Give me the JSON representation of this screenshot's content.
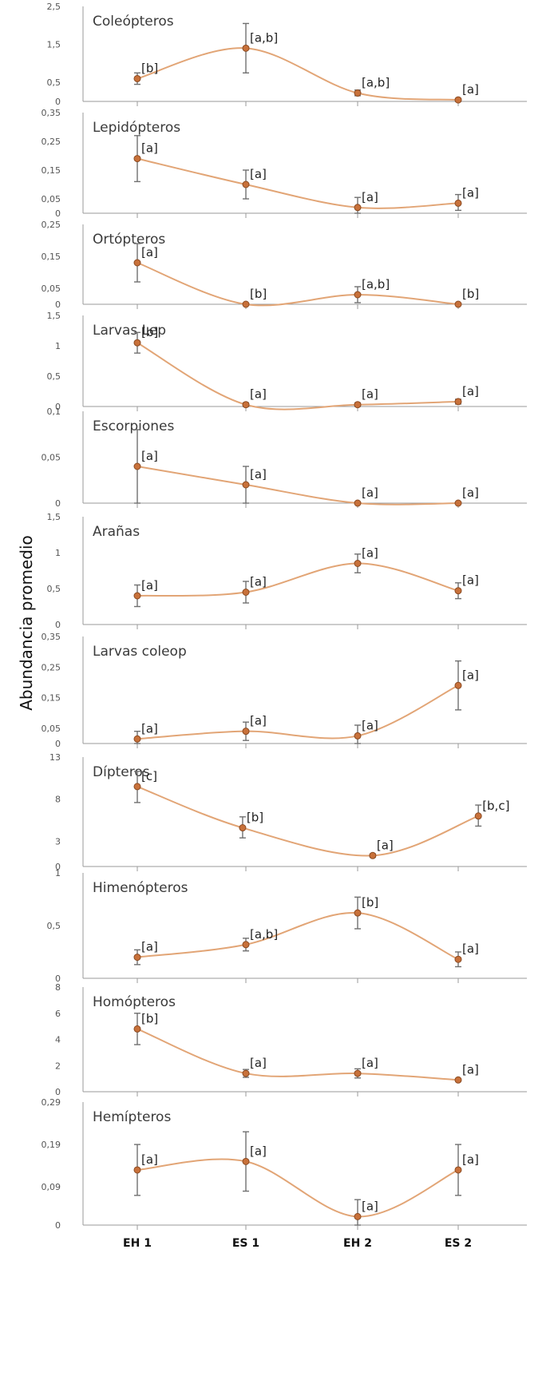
{
  "figure": {
    "ylabel": "Abundancia promedio",
    "x_categories": [
      "EH 1",
      "ES 1",
      "EH 2",
      "ES 2"
    ]
  },
  "colors": {
    "line": "#e2a576",
    "marker_fill": "#c8713a",
    "marker_edge": "#8a4a22",
    "error_bar": "#707070",
    "axis": "#9a9a9a"
  },
  "chart_data": [
    {
      "type": "line",
      "title": "Coleópteros",
      "categories": [
        "EH 1",
        "ES 1",
        "EH 2",
        "ES 2"
      ],
      "ylim": [
        0,
        2.5
      ],
      "yticks": [
        "0",
        "0,5",
        "1,5",
        "2,5"
      ],
      "ytick_values": [
        0,
        0.5,
        1.5,
        2.5
      ],
      "values": [
        0.6,
        1.4,
        0.22,
        0.04
      ],
      "error_low": [
        0.45,
        0.75,
        0.15,
        0.0
      ],
      "error_high": [
        0.75,
        2.05,
        0.3,
        0.08
      ],
      "labels": [
        "[b]",
        "[a,b]",
        "[a,b]",
        "[a]"
      ],
      "x_positions": [
        0,
        1,
        2,
        3
      ]
    },
    {
      "type": "line",
      "title": "Lepidópteros",
      "categories": [
        "EH 1",
        "ES 1",
        "EH 2",
        "ES 2"
      ],
      "ylim": [
        0,
        0.35
      ],
      "yticks": [
        "0",
        "0,05",
        "0,15",
        "0,25",
        "0,35"
      ],
      "ytick_values": [
        0,
        0.05,
        0.15,
        0.25,
        0.35
      ],
      "values": [
        0.19,
        0.1,
        0.02,
        0.035
      ],
      "error_low": [
        0.11,
        0.05,
        0.0,
        0.01
      ],
      "error_high": [
        0.27,
        0.15,
        0.055,
        0.065
      ],
      "labels": [
        "[a]",
        "[a]",
        "[a]",
        "[a]"
      ],
      "x_positions": [
        0,
        1,
        2,
        3
      ]
    },
    {
      "type": "line",
      "title": "Ortópteros",
      "categories": [
        "EH 1",
        "ES 1",
        "EH 2",
        "ES 2"
      ],
      "ylim": [
        0,
        0.25
      ],
      "yticks": [
        "0",
        "0,05",
        "0,15",
        "0,25"
      ],
      "ytick_values": [
        0,
        0.05,
        0.15,
        0.25
      ],
      "values": [
        0.13,
        0.0,
        0.03,
        0.0
      ],
      "error_low": [
        0.07,
        0.0,
        0.005,
        0.0
      ],
      "error_high": [
        0.19,
        0.0,
        0.055,
        0.0
      ],
      "labels": [
        "[a]",
        "[b]",
        "[a,b]",
        "[b]"
      ],
      "x_positions": [
        0,
        1,
        2,
        3
      ]
    },
    {
      "type": "line",
      "title": "Larvas Lep",
      "categories": [
        "EH 1",
        "ES 1",
        "EH 2",
        "ES 2"
      ],
      "ylim": [
        0,
        1.5
      ],
      "yticks": [
        "0",
        "0,5",
        "1",
        "1,5"
      ],
      "ytick_values": [
        0,
        0.5,
        1,
        1.5
      ],
      "values": [
        1.05,
        0.03,
        0.03,
        0.08
      ],
      "error_low": [
        0.88,
        0.0,
        0.0,
        0.04
      ],
      "error_high": [
        1.22,
        0.06,
        0.06,
        0.12
      ],
      "labels": [
        "[b]",
        "[a]",
        "[a]",
        "[a]"
      ],
      "x_positions": [
        0,
        1,
        2,
        3
      ]
    },
    {
      "type": "line",
      "title": "Escorpiones",
      "categories": [
        "EH 1",
        "ES 1",
        "EH 2",
        "ES 2"
      ],
      "ylim": [
        0,
        0.1
      ],
      "yticks": [
        "0",
        "0,05",
        "0,1"
      ],
      "ytick_values": [
        0,
        0.05,
        0.1
      ],
      "values": [
        0.04,
        0.02,
        0.0,
        0.0
      ],
      "error_low": [
        0.0,
        0.0,
        0.0,
        0.0
      ],
      "error_high": [
        0.08,
        0.04,
        0.0,
        0.0
      ],
      "labels": [
        "[a]",
        "[a]",
        "[a]",
        "[a]"
      ],
      "x_positions": [
        0,
        1,
        2,
        3
      ]
    },
    {
      "type": "line",
      "title": "Arañas",
      "categories": [
        "EH 1",
        "ES 1",
        "EH 2",
        "ES 2"
      ],
      "ylim": [
        0,
        1.5
      ],
      "yticks": [
        "0",
        "0,5",
        "1",
        "1,5"
      ],
      "ytick_values": [
        0,
        0.5,
        1,
        1.5
      ],
      "values": [
        0.4,
        0.45,
        0.85,
        0.47
      ],
      "error_low": [
        0.25,
        0.3,
        0.72,
        0.36
      ],
      "error_high": [
        0.55,
        0.6,
        0.98,
        0.58
      ],
      "labels": [
        "[a]",
        "[a]",
        "[a]",
        "[a]"
      ],
      "x_positions": [
        0,
        1,
        2,
        3
      ]
    },
    {
      "type": "line",
      "title": "Larvas coleop",
      "categories": [
        "EH 1",
        "ES 1",
        "EH 2",
        "ES 2"
      ],
      "ylim": [
        0,
        0.35
      ],
      "yticks": [
        "0",
        "0,05",
        "0,15",
        "0,25",
        "0,35"
      ],
      "ytick_values": [
        0,
        0.05,
        0.15,
        0.25,
        0.35
      ],
      "values": [
        0.015,
        0.04,
        0.025,
        0.19
      ],
      "error_low": [
        0.0,
        0.01,
        0.0,
        0.11
      ],
      "error_high": [
        0.04,
        0.07,
        0.06,
        0.27
      ],
      "labels": [
        "[a]",
        "[a]",
        "[a]",
        "[a]"
      ],
      "x_positions": [
        0,
        1,
        2,
        3
      ]
    },
    {
      "type": "line",
      "title": "Dípteros",
      "categories": [
        "EH 1",
        "ES 1",
        "EH 2",
        "ES 2"
      ],
      "ylim": [
        0,
        13
      ],
      "yticks": [
        "0",
        "3",
        "8",
        "13"
      ],
      "ytick_values": [
        0,
        3,
        8,
        13
      ],
      "values": [
        9.5,
        4.6,
        1.3,
        6.0
      ],
      "error_low": [
        7.6,
        3.4,
        1.1,
        4.8
      ],
      "error_high": [
        11.3,
        5.9,
        1.5,
        7.3
      ],
      "labels": [
        "[c]",
        "[b]",
        "[a]",
        "[b,c]"
      ],
      "x_positions": [
        0,
        0.97,
        2.15,
        3.2
      ]
    },
    {
      "type": "line",
      "title": "Himenópteros",
      "categories": [
        "EH 1",
        "ES 1",
        "EH 2",
        "ES 2"
      ],
      "ylim": [
        0,
        1
      ],
      "yticks": [
        "0",
        "0,5",
        "1"
      ],
      "ytick_values": [
        0,
        0.5,
        1
      ],
      "values": [
        0.2,
        0.32,
        0.62,
        0.18
      ],
      "error_low": [
        0.13,
        0.26,
        0.47,
        0.11
      ],
      "error_high": [
        0.27,
        0.38,
        0.77,
        0.25
      ],
      "labels": [
        "[a]",
        "[a,b]",
        "[b]",
        "[a]"
      ],
      "x_positions": [
        0,
        1,
        2,
        3
      ]
    },
    {
      "type": "line",
      "title": "Homópteros",
      "categories": [
        "EH 1",
        "ES 1",
        "EH 2",
        "ES 2"
      ],
      "ylim": [
        0,
        8
      ],
      "yticks": [
        "0",
        "2",
        "4",
        "6",
        "8"
      ],
      "ytick_values": [
        0,
        2,
        4,
        6,
        8
      ],
      "values": [
        4.8,
        1.4,
        1.4,
        0.9
      ],
      "error_low": [
        3.6,
        1.1,
        1.05,
        0.8
      ],
      "error_high": [
        6.0,
        1.7,
        1.75,
        1.0
      ],
      "labels": [
        "[b]",
        "[a]",
        "[a]",
        "[a]"
      ],
      "x_positions": [
        0,
        1,
        2,
        3
      ]
    },
    {
      "type": "line",
      "title": "Hemípteros",
      "categories": [
        "EH 1",
        "ES 1",
        "EH 2",
        "ES 2"
      ],
      "ylim": [
        0,
        0.29
      ],
      "yticks": [
        "0",
        "0,09",
        "0,19",
        "0,29"
      ],
      "ytick_values": [
        0,
        0.09,
        0.19,
        0.29
      ],
      "values": [
        0.13,
        0.15,
        0.02,
        0.13
      ],
      "error_low": [
        0.07,
        0.08,
        0.0,
        0.07
      ],
      "error_high": [
        0.19,
        0.22,
        0.06,
        0.19
      ],
      "labels": [
        "[a]",
        "[a]",
        "[a]",
        "[a]"
      ],
      "x_positions": [
        0,
        1,
        2,
        3
      ]
    }
  ]
}
